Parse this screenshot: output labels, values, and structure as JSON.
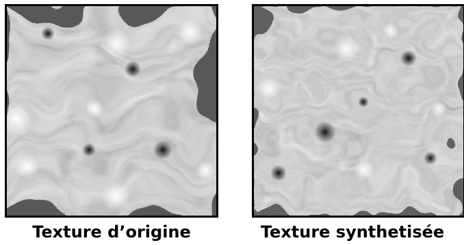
{
  "figure": {
    "left": {
      "caption": "Texture d’origine",
      "image": "turbulent-swirl-texture-original"
    },
    "right": {
      "caption": "Texture synthetisée",
      "image": "turbulent-swirl-texture-synthesized"
    }
  }
}
